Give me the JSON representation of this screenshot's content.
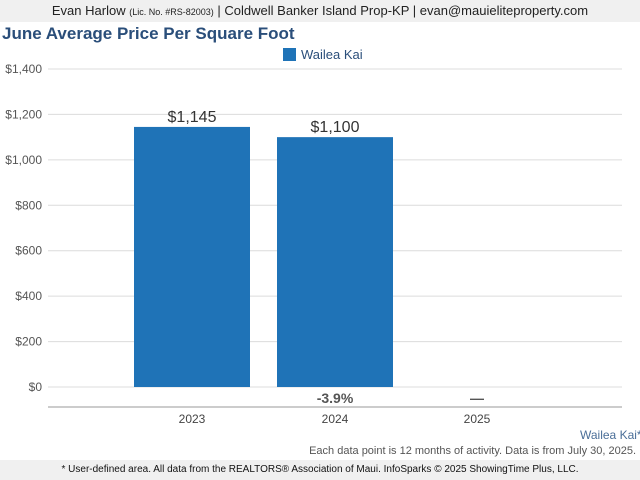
{
  "header": {
    "agent": "Evan Harlow",
    "license": "(Lic. No. #RS-82003)",
    "separator": "|",
    "brokerage": "Coldwell Banker Island Prop-KP",
    "email": "evan@mauieliteproperty.com"
  },
  "colors": {
    "bar": "#1f73b7",
    "title": "#2a4e7a",
    "change": "#555555"
  },
  "chart_data": {
    "type": "bar",
    "title": "June Average Price Per Square Foot",
    "xlabel": "",
    "ylabel": "",
    "categories": [
      "2023",
      "2024",
      "2025"
    ],
    "series": [
      {
        "name": "Wailea Kai",
        "values": [
          1145,
          1100,
          null
        ],
        "value_labels": [
          "$1,145",
          "$1,100",
          ""
        ]
      }
    ],
    "change_labels": [
      "",
      "-3.9%",
      "—"
    ],
    "ylim": [
      0,
      1400
    ],
    "yticks": [
      0,
      200,
      400,
      600,
      800,
      1000,
      1200,
      1400
    ],
    "ytick_labels": [
      "$0",
      "$200",
      "$400",
      "$600",
      "$800",
      "$1,000",
      "$1,200",
      "$1,400"
    ],
    "grid": true,
    "legend": "top-center"
  },
  "footer": {
    "area_label": "Wailea Kai*",
    "note": "Each data point is 12 months of activity. Data is from July 30, 2025.",
    "source": "* User-defined area. All data from the REALTORS® Association of Maui. InfoSparks © 2025 ShowingTime Plus, LLC."
  }
}
